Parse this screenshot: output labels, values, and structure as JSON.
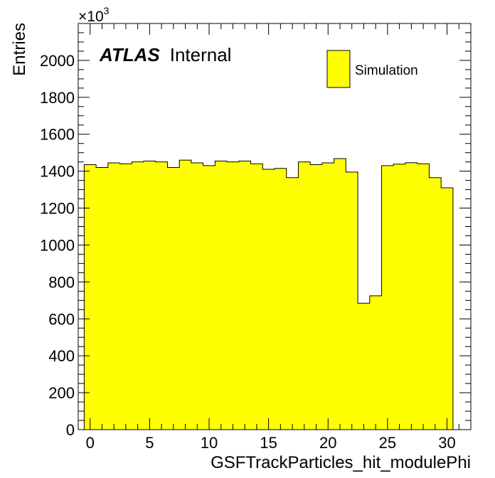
{
  "chart_data": {
    "type": "bar",
    "histogram": true,
    "xlabel": "GSFTrackParticles_hit_modulePhi",
    "ylabel": "Entries",
    "y_multiplier": "×10",
    "y_multiplier_exp": "3",
    "xlim": [
      -1,
      32
    ],
    "ylim": [
      0,
      2200
    ],
    "x_ticks": [
      0,
      5,
      10,
      15,
      20,
      25,
      30
    ],
    "y_ticks": [
      0,
      200,
      400,
      600,
      800,
      1000,
      1200,
      1400,
      1600,
      1800,
      2000
    ],
    "bin_width": 1,
    "x": [
      0,
      1,
      2,
      3,
      4,
      5,
      6,
      7,
      8,
      9,
      10,
      11,
      12,
      13,
      14,
      15,
      16,
      17,
      18,
      19,
      20,
      21,
      22,
      23,
      24,
      25,
      26,
      27,
      28,
      29,
      30,
      31
    ],
    "values": [
      1435,
      1420,
      1445,
      1440,
      1450,
      1455,
      1450,
      1420,
      1460,
      1445,
      1430,
      1455,
      1450,
      1455,
      1440,
      1410,
      1415,
      1365,
      1450,
      1435,
      1445,
      1468,
      1395,
      685,
      725,
      1430,
      1438,
      1446,
      1440,
      1365,
      1310,
      0
    ],
    "series": [
      {
        "name": "Simulation",
        "color": "#ffff00"
      }
    ],
    "label_bold": "ATLAS",
    "label_text": "Internal",
    "legend_position": "top-right",
    "grid": false
  }
}
